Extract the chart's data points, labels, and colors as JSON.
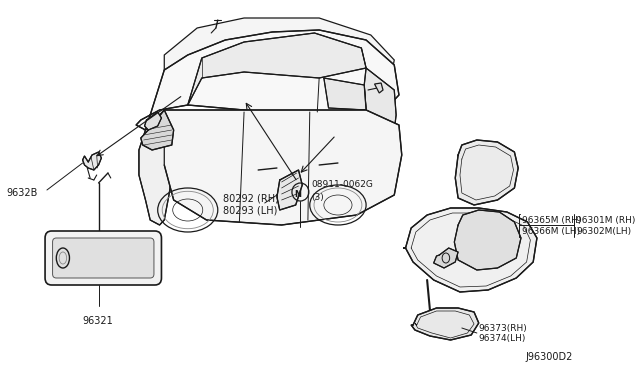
{
  "background_color": "#ffffff",
  "diagram_number": "J96300D2",
  "text_color": "#1a1a1a",
  "labels": {
    "9632B": [
      0.028,
      0.468
    ],
    "96321": [
      0.088,
      0.268
    ],
    "80292_RH": "80292 (RH)",
    "80293_LH": "80293 (LH)",
    "bolt": "08911-0062G",
    "bolt2": "(3)",
    "96365M_RH": "96365M (RH)",
    "96366M_LH": "96366M (LH)",
    "96301M_RH": "96301M (RH)",
    "96302M_LH": "96302M(LH)",
    "96373_RH": "96373(RH)",
    "96374_LH": "96374(LH)"
  }
}
